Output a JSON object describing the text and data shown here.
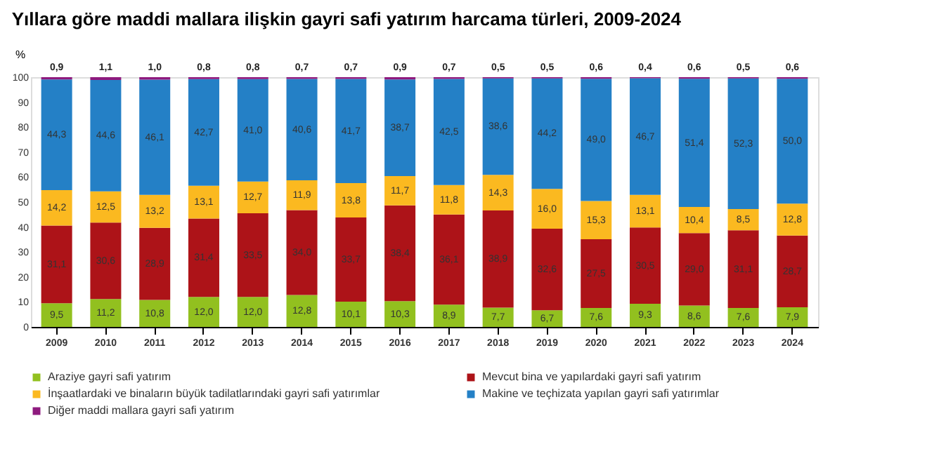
{
  "chart_data": {
    "type": "bar",
    "stacked": true,
    "title": "Yıllara göre maddi mallara ilişkin gayri safi yatırım harcama türleri, 2009-2024",
    "ylabel": "%",
    "categories": [
      "2009",
      "2010",
      "2011",
      "2012",
      "2013",
      "2014",
      "2015",
      "2016",
      "2017",
      "2018",
      "2019",
      "2020",
      "2021",
      "2022",
      "2023",
      "2024"
    ],
    "ylim": [
      0,
      100
    ],
    "yticks": [
      0,
      10,
      20,
      30,
      40,
      50,
      60,
      70,
      80,
      90,
      100
    ],
    "grid": false,
    "legend": "bottom",
    "series": [
      {
        "name": "Araziye gayri safi yatırım",
        "color": "#92c01f",
        "values": [
          9.5,
          11.2,
          10.8,
          12.0,
          12.0,
          12.8,
          10.1,
          10.3,
          8.9,
          7.7,
          6.7,
          7.6,
          9.3,
          8.6,
          7.6,
          7.9
        ],
        "value_labels": [
          "9,5",
          "11,2",
          "10,8",
          "12,0",
          "12,0",
          "12,8",
          "10,1",
          "10,3",
          "8,9",
          "7,7",
          "6,7",
          "7,6",
          "9,3",
          "8,6",
          "7,6",
          "7,9"
        ]
      },
      {
        "name": "Mevcut bina ve yapılardaki gayri safi yatırım",
        "color": "#ad1318",
        "values": [
          31.1,
          30.6,
          28.9,
          31.4,
          33.5,
          34.0,
          33.7,
          38.4,
          36.1,
          38.9,
          32.6,
          27.5,
          30.5,
          29.0,
          31.1,
          28.7
        ],
        "value_labels": [
          "31,1",
          "30,6",
          "28,9",
          "31,4",
          "33,5",
          "34,0",
          "33,7",
          "38,4",
          "36,1",
          "38,9",
          "32,6",
          "27,5",
          "30,5",
          "29,0",
          "31,1",
          "28,7"
        ]
      },
      {
        "name": "İnşaatlardaki ve binaların büyük tadilatlarındaki gayri safi yatırımlar",
        "color": "#fbb920",
        "values": [
          14.2,
          12.5,
          13.2,
          13.1,
          12.7,
          11.9,
          13.8,
          11.7,
          11.8,
          14.3,
          16.0,
          15.3,
          13.1,
          10.4,
          8.5,
          12.8
        ],
        "value_labels": [
          "14,2",
          "12,5",
          "13,2",
          "13,1",
          "12,7",
          "11,9",
          "13,8",
          "11,7",
          "11,8",
          "14,3",
          "16,0",
          "15,3",
          "13,1",
          "10,4",
          "8,5",
          "12,8"
        ]
      },
      {
        "name": "Makine ve teçhizata yapılan gayri safi yatırımlar",
        "color": "#2480c6",
        "values": [
          44.3,
          44.6,
          46.1,
          42.7,
          41.0,
          40.6,
          41.7,
          38.7,
          42.5,
          38.6,
          44.2,
          49.0,
          46.7,
          51.4,
          52.3,
          50.0
        ],
        "value_labels": [
          "44,3",
          "44,6",
          "46,1",
          "42,7",
          "41,0",
          "40,6",
          "41,7",
          "38,7",
          "42,5",
          "38,6",
          "44,2",
          "49,0",
          "46,7",
          "51,4",
          "52,3",
          "50,0"
        ]
      },
      {
        "name": "Diğer maddi mallara gayri safi yatırım",
        "color": "#8e1a7e",
        "values": [
          0.9,
          1.1,
          1.0,
          0.8,
          0.8,
          0.7,
          0.7,
          0.9,
          0.7,
          0.5,
          0.5,
          0.6,
          0.4,
          0.6,
          0.5,
          0.6
        ],
        "value_labels": [
          "0,9",
          "1,1",
          "1,0",
          "0,8",
          "0,8",
          "0,7",
          "0,7",
          "0,9",
          "0,7",
          "0,5",
          "0,5",
          "0,6",
          "0,4",
          "0,6",
          "0,5",
          "0,6"
        ]
      }
    ]
  }
}
